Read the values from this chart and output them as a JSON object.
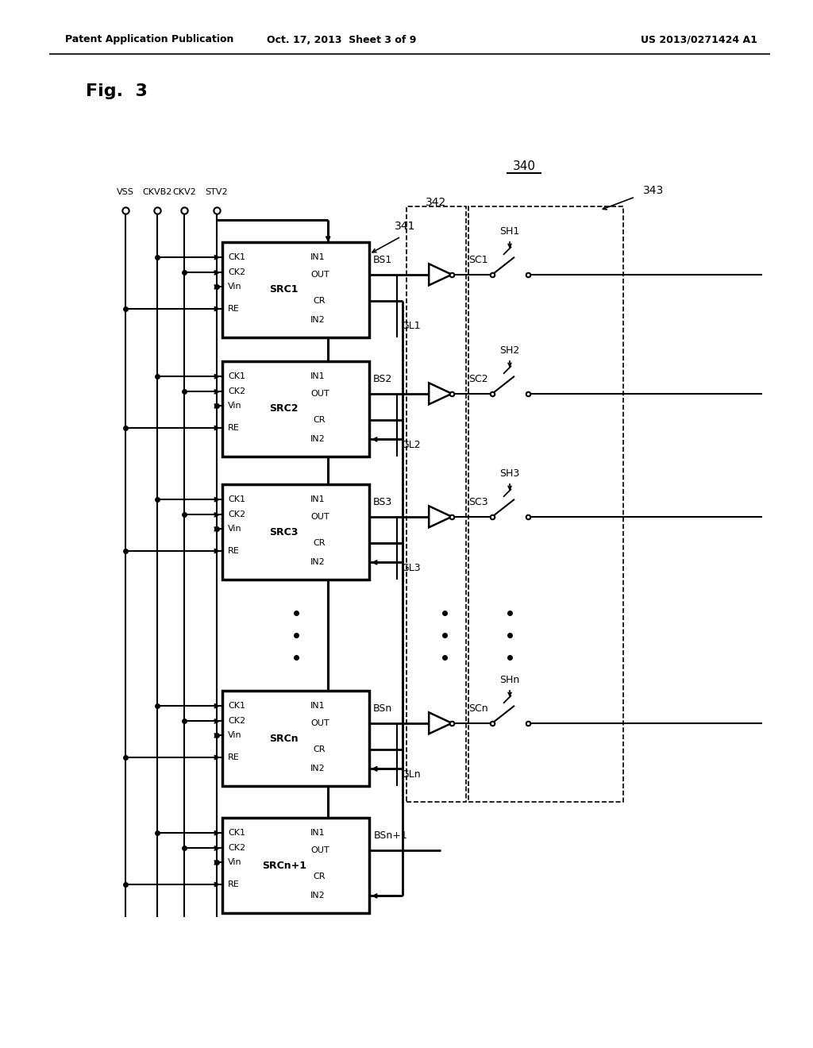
{
  "header_left": "Patent Application Publication",
  "header_center": "Oct. 17, 2013  Sheet 3 of 9",
  "header_right": "US 2013/0271424 A1",
  "fig_label": "Fig.  3",
  "top_signals": [
    "VSS",
    "CKVB2",
    "CKV2",
    "STV2"
  ],
  "blocks": [
    {
      "label": "SRC1",
      "bs": "BS1",
      "gl": "GL1",
      "sc": "SC1",
      "sh": "SH1",
      "has_sc": true
    },
    {
      "label": "SRC2",
      "bs": "BS2",
      "gl": "GL2",
      "sc": "SC2",
      "sh": "SH2",
      "has_sc": true
    },
    {
      "label": "SRC3",
      "bs": "BS3",
      "gl": "GL3",
      "sc": "SC3",
      "sh": "SH3",
      "has_sc": true
    },
    {
      "label": "SRCn",
      "bs": "BSn",
      "gl": "GLn",
      "sc": "SCn",
      "sh": "SHn",
      "has_sc": true
    },
    {
      "label": "SRCn+1",
      "bs": "BSn+1",
      "gl": "",
      "sc": "",
      "sh": "",
      "has_sc": false
    }
  ],
  "ref_340": "340",
  "ref_341": "341",
  "ref_342": "342",
  "ref_343": "343"
}
